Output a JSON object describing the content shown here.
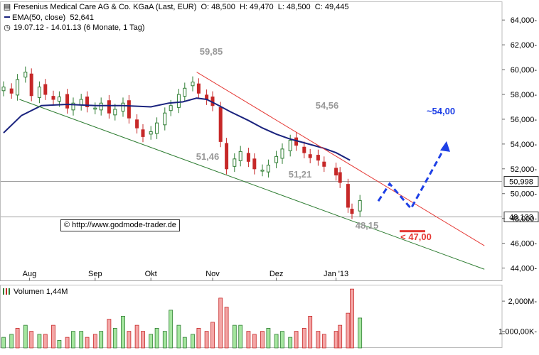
{
  "legend": {
    "instrument": "Fresenius Medical Care AG & Co. KGaA (Last, EUR)",
    "open": "O: 48,500",
    "high": "H: 49,470",
    "low": "L: 48,500",
    "close": "C: 49,445",
    "ema_label": "EMA(50, close)",
    "ema_value": "52,641",
    "range_icon": "clock-icon",
    "range_text": "19.07.12 - 14.01.13 (6 Monate, 1 Tag)"
  },
  "watermark": {
    "icon": "copyright-symbol",
    "text": "© http://www.godmode-trader.de"
  },
  "volume_legend": "Volumen 1,44M",
  "colors": {
    "up": "#2e7d32",
    "down": "#c62828",
    "ema": "#1a237e",
    "trend_upper": "#e53935",
    "trend_lower": "#2e7d32",
    "forecast": "#1e40e6",
    "target": "#e53935",
    "annotation": "#999999",
    "vol_up": "#a5e69f",
    "vol_down": "#f4a6a6"
  },
  "chart_data": [
    {
      "type": "candlestick",
      "xlabel": "",
      "ylabel": "",
      "ylim": [
        43.0,
        65.5
      ],
      "yticks": [
        "44,000-",
        "46,000-",
        "48,000-",
        "50,000-",
        "52,000-",
        "54,000-",
        "56,000-",
        "58,000-",
        "60,000-",
        "62,000-",
        "64,000-"
      ],
      "ytick_values": [
        44,
        46,
        48,
        50,
        52,
        54,
        56,
        58,
        60,
        62,
        64
      ],
      "xticks": [
        "Aug",
        "Sep",
        "Okt",
        "Nov",
        "Dez",
        "Jan '13"
      ],
      "xtick_dates": [
        "2012-08-01",
        "2012-09-03",
        "2012-10-01",
        "2012-11-01",
        "2012-12-03",
        "2013-01-02"
      ],
      "x_range": [
        "2012-07-19",
        "2013-01-14"
      ],
      "horizontal_lines": [
        {
          "value": 50.998,
          "label": "50,998"
        },
        {
          "value": 48.133,
          "label": "48,133"
        }
      ],
      "annotations": [
        {
          "text": "59,85",
          "value": 59.85
        },
        {
          "text": "54,56",
          "value": 54.56
        },
        {
          "text": "51,46",
          "value": 51.46
        },
        {
          "text": "51,21",
          "value": 51.21
        },
        {
          "text": "48,15",
          "value": 48.15
        },
        {
          "text": "~54,00",
          "value": 54.0
        },
        {
          "text": "< 47,00",
          "value": 47.0
        }
      ],
      "trendlines": [
        {
          "name": "upper",
          "from": [
            "2012-10-24",
            59.8
          ],
          "to": [
            "2013-01-14",
            46.9
          ]
        },
        {
          "name": "lower",
          "from": [
            "2012-07-27",
            57.6
          ],
          "to": [
            "2013-01-14",
            44.9
          ]
        }
      ],
      "forecast_path": [
        {
          "date": "2013-01-03",
          "value": 49.4
        },
        {
          "date": "2013-01-08",
          "value": 50.8
        },
        {
          "date": "2013-01-12",
          "value": 48.8
        },
        {
          "date": "2013-01-25",
          "value": 54.0
        }
      ],
      "ema_series": {
        "label": "EMA(50, close)",
        "points": [
          {
            "date": "2012-07-19",
            "value": 54.9
          },
          {
            "date": "2012-07-28",
            "value": 56.3
          },
          {
            "date": "2012-08-07",
            "value": 57.1
          },
          {
            "date": "2012-08-20",
            "value": 57.2
          },
          {
            "date": "2012-09-03",
            "value": 57.1
          },
          {
            "date": "2012-09-17",
            "value": 57.1
          },
          {
            "date": "2012-10-01",
            "value": 57.0
          },
          {
            "date": "2012-10-10",
            "value": 57.3
          },
          {
            "date": "2012-10-17",
            "value": 57.4
          },
          {
            "date": "2012-10-24",
            "value": 57.7
          },
          {
            "date": "2012-10-29",
            "value": 57.6
          },
          {
            "date": "2012-11-03",
            "value": 57.2
          },
          {
            "date": "2012-11-10",
            "value": 56.6
          },
          {
            "date": "2012-11-19",
            "value": 55.9
          },
          {
            "date": "2012-11-26",
            "value": 55.3
          },
          {
            "date": "2012-12-03",
            "value": 54.8
          },
          {
            "date": "2012-12-10",
            "value": 54.4
          },
          {
            "date": "2012-12-17",
            "value": 54.1
          },
          {
            "date": "2012-12-26",
            "value": 53.7
          },
          {
            "date": "2013-01-02",
            "value": 53.3
          },
          {
            "date": "2013-01-09",
            "value": 52.7
          }
        ]
      },
      "price_series": [
        {
          "date": "2012-07-19",
          "close": 58.6
        },
        {
          "date": "2012-07-23",
          "close": 58.1
        },
        {
          "date": "2012-07-26",
          "close": 59.2
        },
        {
          "date": "2012-07-30",
          "close": 59.8
        },
        {
          "date": "2012-08-02",
          "close": 57.9
        },
        {
          "date": "2012-08-06",
          "close": 58.6
        },
        {
          "date": "2012-08-09",
          "close": 58.0
        },
        {
          "date": "2012-08-13",
          "close": 57.6
        },
        {
          "date": "2012-08-16",
          "close": 57.8
        },
        {
          "date": "2012-08-20",
          "close": 56.9
        },
        {
          "date": "2012-08-23",
          "close": 57.3
        },
        {
          "date": "2012-08-27",
          "close": 57.6
        },
        {
          "date": "2012-08-30",
          "close": 57.0
        },
        {
          "date": "2012-09-03",
          "close": 56.9
        },
        {
          "date": "2012-09-06",
          "close": 57.3
        },
        {
          "date": "2012-09-10",
          "close": 56.5
        },
        {
          "date": "2012-09-13",
          "close": 56.8
        },
        {
          "date": "2012-09-17",
          "close": 57.3
        },
        {
          "date": "2012-09-20",
          "close": 56.1
        },
        {
          "date": "2012-09-24",
          "close": 55.3
        },
        {
          "date": "2012-09-27",
          "close": 54.6
        },
        {
          "date": "2012-10-01",
          "close": 55.0
        },
        {
          "date": "2012-10-04",
          "close": 55.7
        },
        {
          "date": "2012-10-08",
          "close": 56.5
        },
        {
          "date": "2012-10-11",
          "close": 57.1
        },
        {
          "date": "2012-10-15",
          "close": 58.0
        },
        {
          "date": "2012-10-18",
          "close": 58.5
        },
        {
          "date": "2012-10-22",
          "close": 59.0
        },
        {
          "date": "2012-10-25",
          "close": 58.1
        },
        {
          "date": "2012-10-29",
          "close": 57.6
        },
        {
          "date": "2012-11-01",
          "close": 57.1
        },
        {
          "date": "2012-11-05",
          "close": 54.2
        },
        {
          "date": "2012-11-08",
          "close": 52.0
        },
        {
          "date": "2012-11-12",
          "close": 52.8
        },
        {
          "date": "2012-11-15",
          "close": 53.4
        },
        {
          "date": "2012-11-19",
          "close": 52.6
        },
        {
          "date": "2012-11-22",
          "close": 52.0
        },
        {
          "date": "2012-11-26",
          "close": 51.9
        },
        {
          "date": "2012-11-29",
          "close": 52.3
        },
        {
          "date": "2012-12-03",
          "close": 53.0
        },
        {
          "date": "2012-12-06",
          "close": 53.6
        },
        {
          "date": "2012-12-10",
          "close": 54.3
        },
        {
          "date": "2012-12-13",
          "close": 53.9
        },
        {
          "date": "2012-12-17",
          "close": 53.3
        },
        {
          "date": "2012-12-20",
          "close": 52.9
        },
        {
          "date": "2012-12-24",
          "close": 52.7
        },
        {
          "date": "2012-12-27",
          "close": 52.2
        },
        {
          "date": "2013-01-02",
          "close": 51.5
        },
        {
          "date": "2013-01-04",
          "close": 50.9
        },
        {
          "date": "2013-01-08",
          "close": 48.9
        },
        {
          "date": "2013-01-10",
          "close": 48.4
        },
        {
          "date": "2013-01-14",
          "close": 49.445
        }
      ]
    },
    {
      "type": "bar",
      "title": "Volumen 1,44M",
      "yticks": [
        "2,000M-",
        "1.000,00K-"
      ],
      "ytick_values": [
        2.0,
        1.0
      ],
      "ylim": [
        0.45,
        2.45
      ],
      "unit": "M",
      "categories": [
        "2012-07-19",
        "2012-07-23",
        "2012-07-26",
        "2012-07-30",
        "2012-08-02",
        "2012-08-06",
        "2012-08-09",
        "2012-08-13",
        "2012-08-16",
        "2012-08-20",
        "2012-08-23",
        "2012-08-27",
        "2012-08-30",
        "2012-09-03",
        "2012-09-06",
        "2012-09-10",
        "2012-09-13",
        "2012-09-17",
        "2012-09-20",
        "2012-09-24",
        "2012-09-27",
        "2012-10-01",
        "2012-10-04",
        "2012-10-08",
        "2012-10-11",
        "2012-10-15",
        "2012-10-18",
        "2012-10-22",
        "2012-10-25",
        "2012-10-29",
        "2012-11-01",
        "2012-11-05",
        "2012-11-08",
        "2012-11-12",
        "2012-11-15",
        "2012-11-19",
        "2012-11-22",
        "2012-11-26",
        "2012-11-29",
        "2012-12-03",
        "2012-12-06",
        "2012-12-10",
        "2012-12-13",
        "2012-12-17",
        "2012-12-20",
        "2012-12-24",
        "2012-12-27",
        "2013-01-02",
        "2013-01-04",
        "2013-01-08",
        "2013-01-10",
        "2013-01-14"
      ],
      "values": [
        0.8,
        0.9,
        1.1,
        1.2,
        1.0,
        0.9,
        0.9,
        1.2,
        0.7,
        0.8,
        1.0,
        1.0,
        0.8,
        0.9,
        1.0,
        1.4,
        1.1,
        1.5,
        1.0,
        1.2,
        1.0,
        0.9,
        1.1,
        1.0,
        1.7,
        1.2,
        0.8,
        0.9,
        1.1,
        1.0,
        1.3,
        2.1,
        1.8,
        1.2,
        1.2,
        1.0,
        0.9,
        1.0,
        1.1,
        0.9,
        1.0,
        0.8,
        1.0,
        1.1,
        1.5,
        1.0,
        0.9,
        1.0,
        1.2,
        1.6,
        2.4,
        1.44
      ],
      "direction": [
        "up",
        "up",
        "down",
        "up",
        "down",
        "up",
        "down",
        "down",
        "up",
        "down",
        "up",
        "up",
        "down",
        "down",
        "up",
        "down",
        "up",
        "up",
        "down",
        "down",
        "down",
        "up",
        "up",
        "up",
        "up",
        "up",
        "up",
        "up",
        "down",
        "down",
        "down",
        "down",
        "down",
        "up",
        "up",
        "down",
        "down",
        "down",
        "up",
        "up",
        "up",
        "up",
        "down",
        "down",
        "down",
        "down",
        "down",
        "down",
        "down",
        "down",
        "down",
        "up"
      ]
    }
  ]
}
